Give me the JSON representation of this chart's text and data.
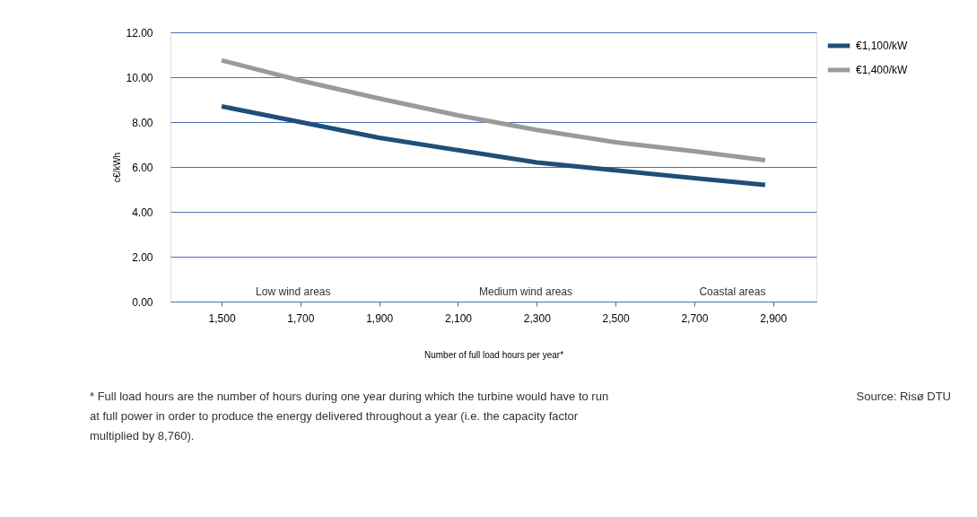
{
  "chart_data": {
    "type": "line",
    "xlabel": "Number of full load hours per year*",
    "ylabel": "c€/kWh",
    "x": [
      1500,
      1700,
      1900,
      2100,
      2300,
      2500,
      2700,
      2880
    ],
    "series": [
      {
        "name": "€1,100/kW",
        "color": "#1f4e79",
        "values": [
          8.7,
          8.0,
          7.3,
          6.75,
          6.2,
          5.85,
          5.5,
          5.2
        ]
      },
      {
        "name": "€1,400/kW",
        "color": "#9a9a9a",
        "values": [
          10.75,
          9.85,
          9.05,
          8.3,
          7.65,
          7.1,
          6.7,
          6.3
        ]
      }
    ],
    "xlim": [
      1370,
      3010
    ],
    "xticks": [
      {
        "value": 1500,
        "label": "1,500"
      },
      {
        "value": 1700,
        "label": "1,700"
      },
      {
        "value": 1900,
        "label": "1,900"
      },
      {
        "value": 2100,
        "label": "2,100"
      },
      {
        "value": 2300,
        "label": "2,300"
      },
      {
        "value": 2500,
        "label": "2,500"
      },
      {
        "value": 2700,
        "label": "2,700"
      },
      {
        "value": 2900,
        "label": "2,900"
      }
    ],
    "ylim": [
      0,
      12
    ],
    "yticks": [
      {
        "value": 0,
        "label": "0.00"
      },
      {
        "value": 2,
        "label": "2.00"
      },
      {
        "value": 4,
        "label": "4.00"
      },
      {
        "value": 6,
        "label": "6.00"
      },
      {
        "value": 8,
        "label": "8.00"
      },
      {
        "value": 10,
        "label": "10.00"
      },
      {
        "value": 12,
        "label": "12.00"
      }
    ],
    "grid": "y",
    "legend": "top right",
    "marker": "none",
    "line_style": "solid",
    "annotations": [
      "Low wind areas",
      "Medium wind areas",
      "Coastal areas",
      "* Full load hours are the number of hours during one year during which the turbine would have to run at full power in order to produce the energy delivered throughout a year (i.e. the capacity factor multiplied by 8,760).",
      "Source: Risø DTU"
    ]
  }
}
